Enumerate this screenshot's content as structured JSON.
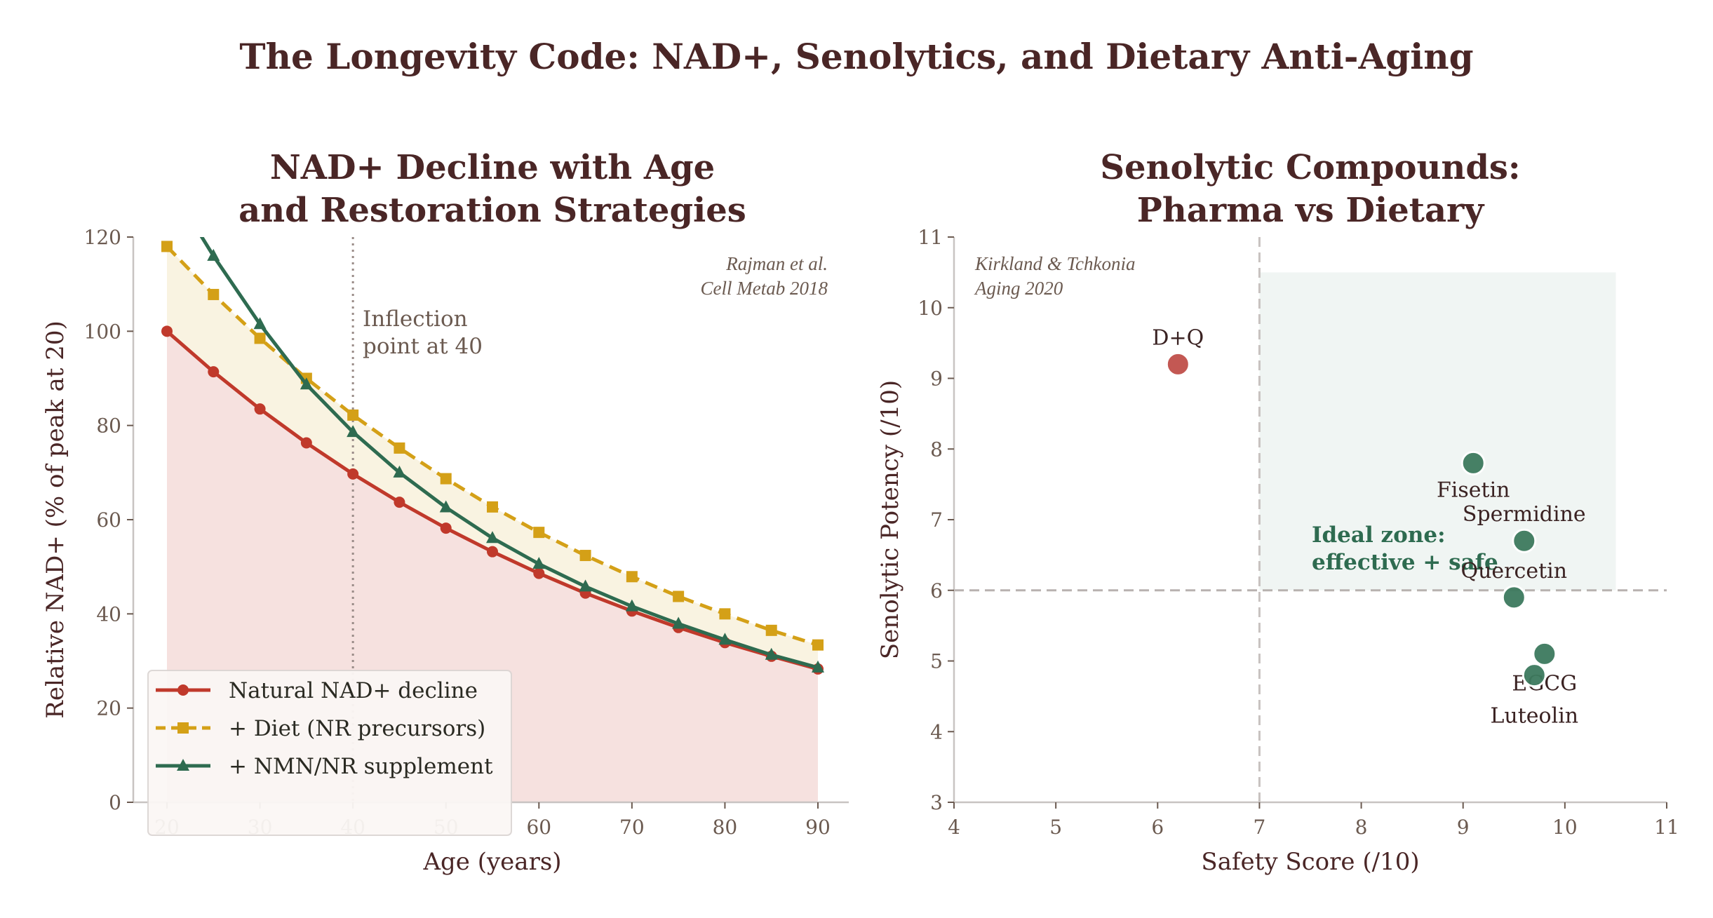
{
  "title": "The Longevity Code: NAD+, Senolytics, and Dietary Anti-Aging",
  "colors": {
    "title": "#4a2626",
    "natural": "#c0392b",
    "diet": "#d4a017",
    "supplement": "#2e6b50",
    "pharma": "#c0504a",
    "dietary": "#3d7a5e",
    "axis_text": "#6b5a50"
  },
  "chart_data": [
    {
      "type": "line",
      "title": [
        "NAD+ Decline with Age",
        "and Restoration Strategies"
      ],
      "xlabel": "Age (years)",
      "ylabel": "Relative NAD+ (% of peak at 20)",
      "xlim": [
        16,
        93
      ],
      "ylim": [
        0,
        120
      ],
      "xticks": [
        20,
        30,
        40,
        50,
        60,
        70,
        80,
        90
      ],
      "yticks": [
        0,
        20,
        40,
        60,
        80,
        100,
        120
      ],
      "grid": false,
      "legend": "lower-left",
      "x": [
        20,
        25,
        30,
        35,
        40,
        45,
        50,
        55,
        60,
        65,
        70,
        75,
        80,
        85,
        90
      ],
      "series": [
        {
          "name": "Natural NAD+ decline",
          "marker": "circle",
          "style": "solid",
          "values": [
            100,
            91.4,
            83.5,
            76.3,
            69.7,
            63.7,
            58.2,
            53.2,
            48.6,
            44.4,
            40.6,
            37.1,
            33.9,
            31.0,
            28.3
          ]
        },
        {
          "name": "+ Diet (NR precursors)",
          "marker": "square",
          "style": "dashed",
          "values": [
            118,
            107.8,
            98.5,
            90.0,
            82.2,
            75.2,
            68.7,
            62.7,
            57.3,
            52.4,
            47.9,
            43.7,
            40.0,
            36.5,
            33.4
          ]
        },
        {
          "name": "+ NMN/NR supplement",
          "marker": "triangle",
          "style": "solid",
          "values": [
            132,
            116,
            101.5,
            88.7,
            78.6,
            70.0,
            62.6,
            56.1,
            50.6,
            45.8,
            41.6,
            37.9,
            34.5,
            31.3,
            28.6
          ]
        }
      ],
      "vline": {
        "x": 40,
        "label": [
          "Inflection",
          "point at 40"
        ]
      },
      "citation": [
        "Rajman et al.",
        "Cell Metab 2018"
      ]
    },
    {
      "type": "scatter",
      "title": [
        "Senolytic Compounds:",
        "Pharma vs Dietary"
      ],
      "xlabel": "Safety Score (/10)",
      "ylabel": "Senolytic Potency (/10)",
      "xlim": [
        4,
        11
      ],
      "ylim": [
        3,
        11
      ],
      "xticks": [
        4,
        5,
        6,
        7,
        8,
        9,
        10,
        11
      ],
      "yticks": [
        3,
        4,
        5,
        6,
        7,
        8,
        9,
        10,
        11
      ],
      "grid": false,
      "points": [
        {
          "label": "D+Q",
          "x": 6.2,
          "y": 9.2,
          "group": "pharma"
        },
        {
          "label": "Fisetin",
          "x": 9.1,
          "y": 7.8,
          "group": "dietary"
        },
        {
          "label": "Spermidine",
          "x": 9.6,
          "y": 6.7,
          "group": "dietary"
        },
        {
          "label": "Quercetin",
          "x": 9.5,
          "y": 5.9,
          "group": "dietary"
        },
        {
          "label": "EGCG",
          "x": 9.8,
          "y": 5.1,
          "group": "dietary"
        },
        {
          "label": "Luteolin",
          "x": 9.7,
          "y": 4.8,
          "group": "dietary"
        }
      ],
      "thresholds": {
        "x": 7,
        "y": 6
      },
      "ideal_zone": {
        "x": [
          7,
          10.5
        ],
        "y": [
          6,
          10.5
        ],
        "label": [
          "Ideal zone:",
          "effective + safe"
        ]
      },
      "citation": [
        "Kirkland & Tchkonia",
        "Aging 2020"
      ]
    }
  ]
}
